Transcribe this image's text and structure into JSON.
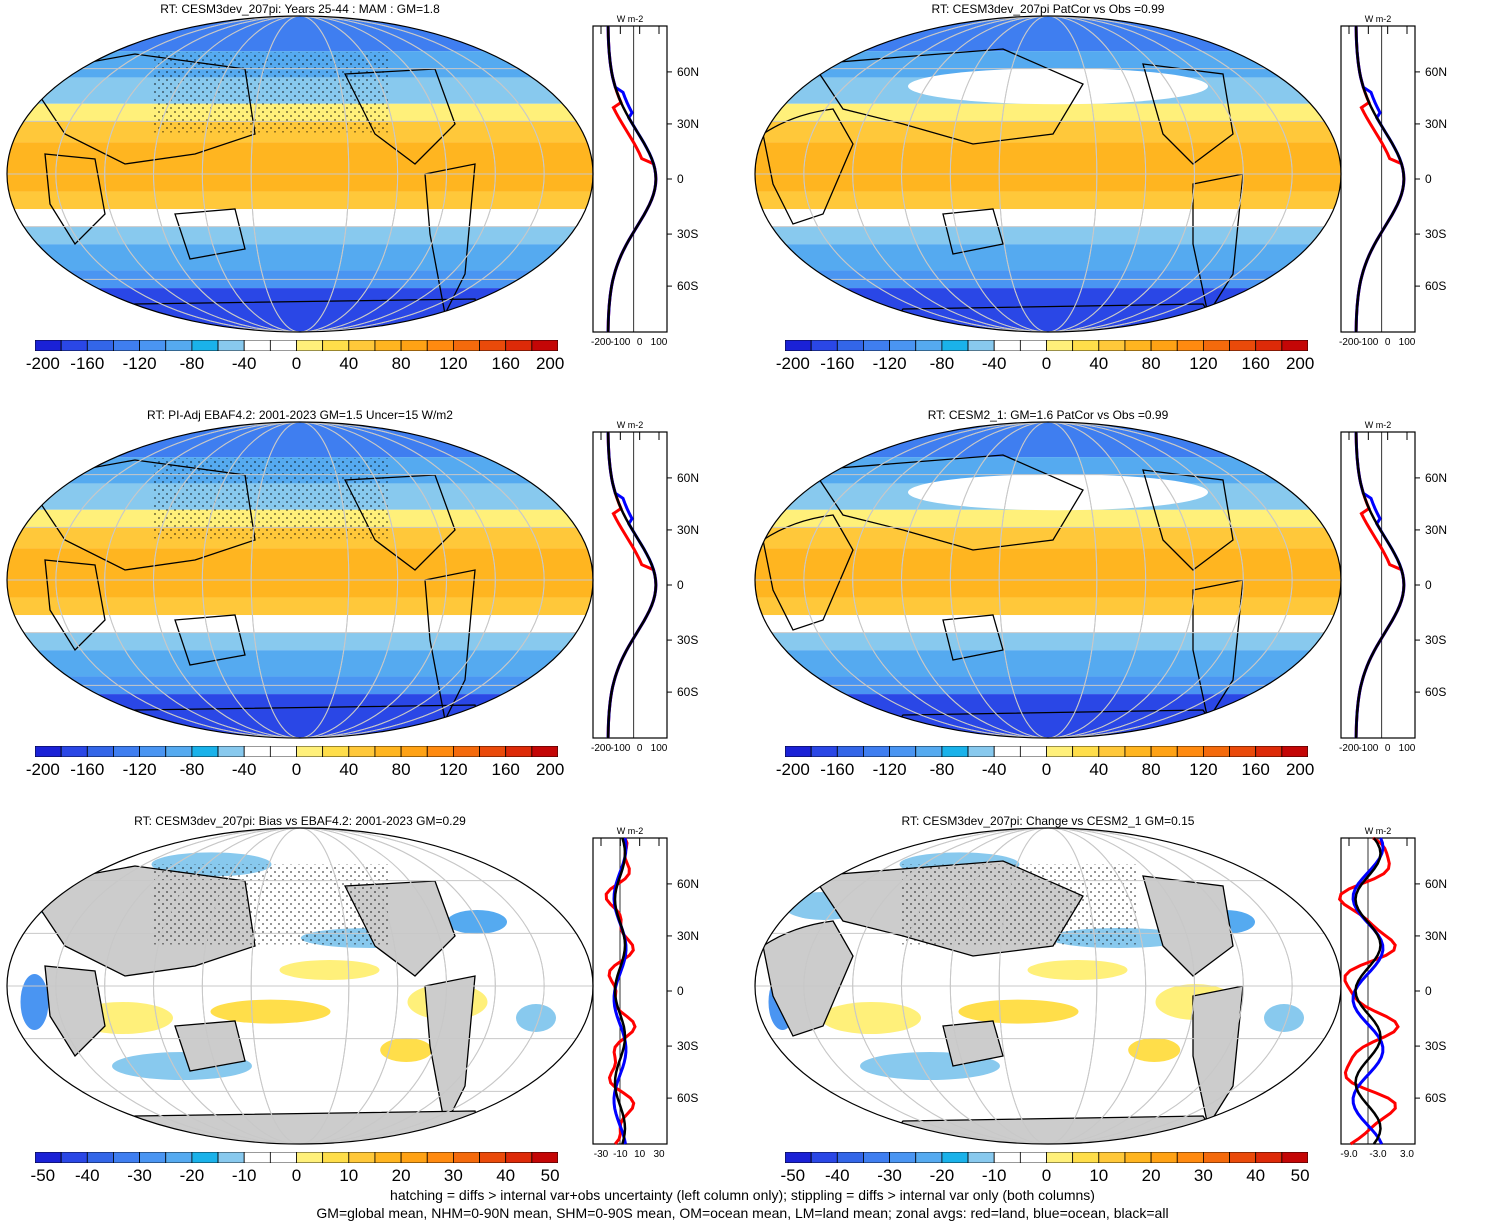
{
  "panels": [
    {
      "title": "RT: CESM3dev_207pi: Years 25-44 : MAM : GM=1.8",
      "colorbar_labels": [
        "-200",
        "-160",
        "-120",
        "-80",
        "-40",
        "0",
        "40",
        "80",
        "120",
        "160",
        "200"
      ],
      "zonal_lat_labels": [
        "60N",
        "30N",
        "0",
        "30S",
        "60S"
      ],
      "zonal_x_labels": [
        "-200",
        "-100",
        "0",
        "100"
      ],
      "zonal_unit": "W m-2",
      "variant": "mean"
    },
    {
      "title": "RT: CESM3dev_207pi PatCor vs Obs =0.99",
      "colorbar_labels": [
        "-200",
        "-160",
        "-120",
        "-80",
        "-40",
        "0",
        "40",
        "80",
        "120",
        "160",
        "200"
      ],
      "zonal_lat_labels": [
        "60N",
        "30N",
        "0",
        "30S",
        "60S"
      ],
      "zonal_x_labels": [
        "-200",
        "-100",
        "0",
        "100"
      ],
      "zonal_unit": "W m-2",
      "variant": "mean-pac"
    },
    {
      "title": "RT: PI-Adj EBAF4.2: 2001-2023 GM=1.5 Uncer=15 W/m2",
      "colorbar_labels": [
        "-200",
        "-160",
        "-120",
        "-80",
        "-40",
        "0",
        "40",
        "80",
        "120",
        "160",
        "200"
      ],
      "zonal_lat_labels": [
        "60N",
        "30N",
        "0",
        "30S",
        "60S"
      ],
      "zonal_x_labels": [
        "-200",
        "-100",
        "0",
        "100"
      ],
      "zonal_unit": "W m-2",
      "variant": "mean"
    },
    {
      "title": "RT: CESM2_1: GM=1.6 PatCor vs Obs =0.99",
      "colorbar_labels": [
        "-200",
        "-160",
        "-120",
        "-80",
        "-40",
        "0",
        "40",
        "80",
        "120",
        "160",
        "200"
      ],
      "zonal_lat_labels": [
        "60N",
        "30N",
        "0",
        "30S",
        "60S"
      ],
      "zonal_x_labels": [
        "-200",
        "-100",
        "0",
        "100"
      ],
      "zonal_unit": "W m-2",
      "variant": "mean-pac"
    },
    {
      "title": "RT: CESM3dev_207pi: Bias vs EBAF4.2: 2001-2023 GM=0.29",
      "colorbar_labels": [
        "-50",
        "-40",
        "-30",
        "-20",
        "-10",
        "0",
        "10",
        "20",
        "30",
        "40",
        "50"
      ],
      "zonal_lat_labels": [
        "60N",
        "30N",
        "0",
        "30S",
        "60S"
      ],
      "zonal_x_labels": [
        "-30",
        "-10",
        "10",
        "30"
      ],
      "zonal_unit": "W m-2",
      "variant": "diff"
    },
    {
      "title": "RT: CESM3dev_207pi: Change vs CESM2_1 GM=0.15",
      "colorbar_labels": [
        "-50",
        "-40",
        "-30",
        "-20",
        "-10",
        "0",
        "10",
        "20",
        "30",
        "40",
        "50"
      ],
      "zonal_lat_labels": [
        "60N",
        "30N",
        "0",
        "30S",
        "60S"
      ],
      "zonal_x_labels": [
        "-9.0",
        "-3.0",
        "3.0"
      ],
      "zonal_unit": "W m-2",
      "variant": "diff"
    }
  ],
  "footer": {
    "line1": "hatching = diffs > internal var+obs uncertainty (left column only); stippling = diffs > internal var only (both columns)",
    "line2": "GM=global mean, NHM=0-90N mean, SHM=0-90S mean, OM=ocean mean, LM=land mean; zonal avgs: red=land, blue=ocean, black=all"
  },
  "colors": {
    "colorbar": [
      "#1a21d6",
      "#2a47e6",
      "#3366e8",
      "#3f7ef0",
      "#4a95f2",
      "#55aaf0",
      "#1ab2ea",
      "#88c9ee",
      "#ffffff",
      "#ffffff",
      "#fff07a",
      "#ffde4a",
      "#ffc83a",
      "#ffb520",
      "#ffa215",
      "#ff8a10",
      "#f46a0c",
      "#ea4a0a",
      "#dd2a08",
      "#c40606"
    ],
    "land": "#cccccc",
    "zonal_land": "#ff0000",
    "zonal_ocean": "#0000ff",
    "zonal_all": "#000000"
  }
}
